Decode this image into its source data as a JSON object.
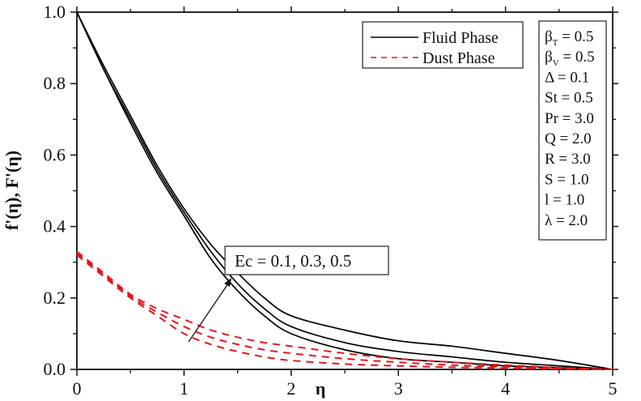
{
  "chart_data": {
    "type": "line",
    "title": "",
    "xlabel": "η",
    "ylabel": "f'(η), F'(η)",
    "xlim": [
      0,
      5
    ],
    "ylim": [
      0,
      1.0
    ],
    "x_ticks": [
      "0",
      "1",
      "2",
      "3",
      "4",
      "5"
    ],
    "y_ticks": [
      "0.0",
      "0.2",
      "0.4",
      "0.6",
      "0.8",
      "1.0"
    ],
    "grid": false,
    "legend": {
      "position": "top-right",
      "entries": [
        {
          "label": "Fluid Phase",
          "style": "solid",
          "color": "#000000"
        },
        {
          "label": "Dust Phase",
          "style": "dashed",
          "color": "#e8141c"
        }
      ]
    },
    "parameters_box": [
      "β_T = 0.5",
      "β_V = 0.5",
      "Δ = 0.1",
      "St = 0.5",
      "Pr = 3.0",
      "Q = 2.0",
      "R = 3.0",
      "S = 1.0",
      "l = 1.0",
      "λ = 2.0"
    ],
    "annotation": {
      "text": "Ec = 0.1, 0.3, 0.5",
      "arrow": "increasing Ec"
    },
    "x": [
      0,
      0.25,
      0.5,
      0.75,
      1.0,
      1.25,
      1.5,
      1.75,
      2.0,
      2.5,
      3.0,
      3.5,
      4.0,
      4.5,
      5.0
    ],
    "series": [
      {
        "name": "Fluid Phase, Ec = 0.1",
        "style": "solid",
        "color": "#000000",
        "values": [
          1.0,
          0.84,
          0.69,
          0.55,
          0.43,
          0.31,
          0.22,
          0.15,
          0.1,
          0.055,
          0.03,
          0.02,
          0.01,
          0.005,
          0.0
        ]
      },
      {
        "name": "Fluid Phase, Ec = 0.3",
        "style": "solid",
        "color": "#000000",
        "values": [
          1.0,
          0.84,
          0.7,
          0.56,
          0.44,
          0.33,
          0.24,
          0.17,
          0.12,
          0.075,
          0.05,
          0.035,
          0.02,
          0.01,
          0.0
        ]
      },
      {
        "name": "Fluid Phase, Ec = 0.5",
        "style": "solid",
        "color": "#000000",
        "values": [
          1.0,
          0.85,
          0.71,
          0.57,
          0.45,
          0.35,
          0.27,
          0.2,
          0.15,
          0.11,
          0.08,
          0.065,
          0.045,
          0.025,
          0.0
        ]
      },
      {
        "name": "Dust Phase, Ec = 0.1",
        "style": "dashed",
        "color": "#e8141c",
        "values": [
          0.32,
          0.26,
          0.2,
          0.15,
          0.1,
          0.07,
          0.05,
          0.035,
          0.025,
          0.015,
          0.01,
          0.006,
          0.004,
          0.002,
          0.0
        ]
      },
      {
        "name": "Dust Phase, Ec = 0.3",
        "style": "dashed",
        "color": "#e8141c",
        "values": [
          0.325,
          0.265,
          0.205,
          0.16,
          0.12,
          0.09,
          0.07,
          0.055,
          0.045,
          0.03,
          0.02,
          0.012,
          0.007,
          0.003,
          0.0
        ]
      },
      {
        "name": "Dust Phase, Ec = 0.5",
        "style": "dashed",
        "color": "#e8141c",
        "values": [
          0.33,
          0.27,
          0.21,
          0.17,
          0.14,
          0.11,
          0.09,
          0.075,
          0.065,
          0.045,
          0.03,
          0.02,
          0.012,
          0.005,
          0.0
        ]
      }
    ]
  },
  "labels": {
    "xlabel": "η",
    "ylabel": "f'(η), F'(η)",
    "legend_fluid": "Fluid Phase",
    "legend_dust": "Dust Phase",
    "annotation": "Ec = 0.1, 0.3, 0.5"
  },
  "colors": {
    "fluid": "#000000",
    "dust": "#e8141c",
    "axis": "#111111"
  }
}
